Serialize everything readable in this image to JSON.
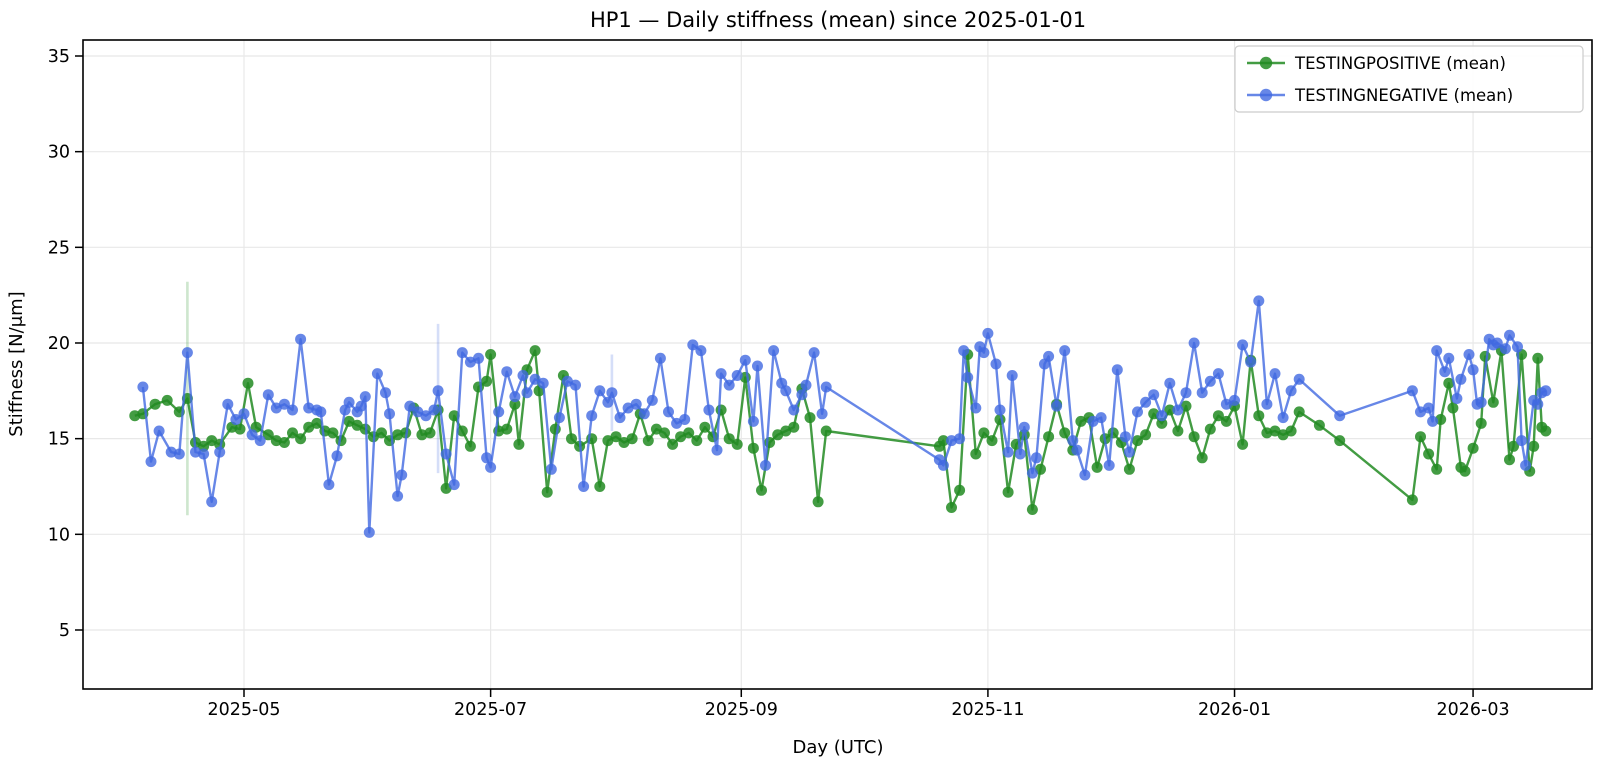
{
  "chart_data": {
    "type": "line",
    "title": "HP1 — Daily stiffness (mean) since 2025-01-01",
    "xlabel": "Day (UTC)",
    "ylabel": "Stiffness [N/μm]",
    "grid": true,
    "legend": {
      "position": "upper right"
    },
    "x_axis": {
      "unit": "day offset from start_date",
      "start_date": "2025-04-04",
      "end_date": "2026-03-19",
      "ticks": [
        {
          "day": 27,
          "label": "2025-05"
        },
        {
          "day": 88,
          "label": "2025-07"
        },
        {
          "day": 150,
          "label": "2025-09"
        },
        {
          "day": 211,
          "label": "2025-11"
        },
        {
          "day": 272,
          "label": "2026-01"
        },
        {
          "day": 331,
          "label": "2026-03"
        }
      ]
    },
    "y_axis": {
      "ticks": [
        5,
        10,
        15,
        20,
        25,
        30,
        35
      ],
      "lim": [
        1.9,
        35.9
      ]
    },
    "series": [
      {
        "name": "TESTINGPOSITIVE (mean)",
        "color_hex": "#228B22",
        "line_rgba": "rgba(34,139,34,0.85)",
        "err_rgba": "rgba(34,139,34,0.22)",
        "days": [
          0,
          2,
          5,
          8,
          11,
          13,
          15,
          17,
          19,
          21,
          24,
          26,
          28,
          30,
          33,
          35,
          37,
          39,
          41,
          43,
          45,
          47,
          49,
          51,
          53,
          55,
          57,
          59,
          61,
          63,
          65,
          67,
          69,
          71,
          73,
          75,
          77,
          79,
          81,
          83,
          85,
          87,
          88,
          90,
          92,
          94,
          95,
          97,
          99,
          100,
          102,
          104,
          106,
          108,
          110,
          113,
          115,
          117,
          119,
          121,
          123,
          125,
          127,
          129,
          131,
          133,
          135,
          137,
          139,
          141,
          143,
          145,
          147,
          149,
          151,
          153,
          155,
          157,
          159,
          161,
          163,
          165,
          167,
          169,
          171,
          199,
          200,
          202,
          204,
          206,
          208,
          210,
          212,
          214,
          216,
          218,
          220,
          222,
          224,
          226,
          228,
          230,
          232,
          234,
          236,
          238,
          240,
          242,
          244,
          246,
          248,
          250,
          252,
          254,
          256,
          258,
          260,
          262,
          264,
          266,
          268,
          270,
          272,
          274,
          276,
          278,
          280,
          282,
          284,
          286,
          288,
          293,
          298,
          316,
          318,
          320,
          322,
          323,
          325,
          326,
          328,
          329,
          331,
          333,
          334,
          336,
          338,
          340,
          341,
          343,
          345,
          346,
          347,
          348,
          349
        ],
        "values": [
          16.2,
          16.3,
          16.8,
          17.0,
          16.4,
          17.1,
          14.8,
          14.6,
          14.9,
          14.7,
          15.6,
          15.5,
          17.9,
          15.6,
          15.2,
          14.9,
          14.8,
          15.3,
          15.0,
          15.6,
          15.8,
          15.4,
          15.3,
          14.9,
          15.9,
          15.7,
          15.5,
          15.1,
          15.3,
          14.9,
          15.2,
          15.3,
          16.6,
          15.2,
          15.3,
          16.5,
          12.4,
          16.2,
          15.4,
          14.6,
          17.7,
          18.0,
          19.4,
          15.4,
          15.5,
          16.8,
          14.7,
          18.6,
          19.6,
          17.5,
          12.2,
          15.5,
          18.3,
          15.0,
          14.6,
          15.0,
          12.5,
          14.9,
          15.1,
          14.8,
          15.0,
          16.3,
          14.9,
          15.5,
          15.3,
          14.7,
          15.1,
          15.3,
          14.9,
          15.6,
          15.1,
          16.5,
          15.0,
          14.7,
          18.2,
          14.5,
          12.3,
          14.8,
          15.2,
          15.4,
          15.6,
          17.6,
          16.1,
          11.7,
          15.4,
          14.6,
          14.9,
          11.4,
          12.3,
          19.4,
          14.2,
          15.3,
          14.9,
          16.0,
          12.2,
          14.7,
          15.2,
          11.3,
          13.4,
          15.1,
          16.8,
          15.3,
          14.4,
          15.9,
          16.1,
          13.5,
          15.0,
          15.3,
          14.8,
          13.4,
          14.9,
          15.2,
          16.3,
          15.8,
          16.5,
          15.4,
          16.7,
          15.1,
          14.0,
          15.5,
          16.2,
          15.9,
          16.7,
          14.7,
          19.1,
          16.2,
          15.3,
          15.4,
          15.2,
          15.4,
          16.4,
          15.7,
          14.9,
          11.8,
          15.1,
          14.2,
          13.4,
          16.0,
          17.9,
          16.6,
          13.5,
          13.3,
          14.5,
          15.8,
          19.3,
          16.9,
          19.6,
          13.9,
          14.6,
          19.4,
          13.3,
          14.6,
          19.2,
          15.6,
          15.4
        ]
      },
      {
        "name": "TESTINGNEGATIVE (mean)",
        "color_hex": "#4169E1",
        "line_rgba": "rgba(65,105,225,0.8)",
        "err_rgba": "rgba(65,105,225,0.22)",
        "days": [
          2,
          4,
          6,
          9,
          11,
          13,
          15,
          17,
          19,
          21,
          23,
          25,
          27,
          29,
          31,
          33,
          35,
          37,
          39,
          41,
          43,
          45,
          46,
          48,
          50,
          52,
          53,
          55,
          56,
          57,
          58,
          60,
          62,
          63,
          65,
          66,
          68,
          70,
          72,
          74,
          75,
          77,
          79,
          81,
          83,
          85,
          87,
          88,
          90,
          92,
          94,
          96,
          97,
          99,
          101,
          103,
          105,
          107,
          109,
          111,
          113,
          115,
          117,
          118,
          120,
          122,
          124,
          126,
          128,
          130,
          132,
          134,
          136,
          138,
          140,
          142,
          144,
          145,
          147,
          149,
          151,
          153,
          154,
          156,
          158,
          160,
          161,
          163,
          165,
          166,
          168,
          170,
          171,
          199,
          200,
          202,
          204,
          205,
          206,
          208,
          209,
          210,
          211,
          213,
          214,
          216,
          217,
          219,
          220,
          222,
          223,
          225,
          226,
          228,
          230,
          232,
          233,
          235,
          237,
          239,
          241,
          243,
          245,
          246,
          248,
          250,
          252,
          254,
          256,
          258,
          260,
          262,
          264,
          266,
          268,
          270,
          272,
          274,
          276,
          278,
          280,
          282,
          284,
          286,
          288,
          298,
          316,
          318,
          320,
          321,
          322,
          324,
          325,
          327,
          328,
          330,
          331,
          332,
          333,
          335,
          336,
          337,
          339,
          340,
          342,
          343,
          344,
          346,
          347,
          348,
          349
        ],
        "values": [
          17.7,
          13.8,
          15.4,
          14.3,
          14.2,
          19.5,
          14.3,
          14.2,
          11.7,
          14.3,
          16.8,
          16.0,
          16.3,
          15.2,
          14.9,
          17.3,
          16.6,
          16.8,
          16.5,
          20.2,
          16.6,
          16.5,
          16.4,
          12.6,
          14.1,
          16.5,
          16.9,
          16.4,
          16.7,
          17.2,
          10.1,
          18.4,
          17.4,
          16.3,
          12.0,
          13.1,
          16.7,
          16.4,
          16.2,
          16.5,
          17.5,
          14.2,
          12.6,
          19.5,
          19.0,
          19.2,
          14.0,
          13.5,
          16.4,
          18.5,
          17.2,
          18.3,
          17.4,
          18.1,
          17.9,
          13.4,
          16.1,
          18.0,
          17.8,
          12.5,
          16.2,
          17.5,
          16.9,
          17.4,
          16.1,
          16.6,
          16.8,
          16.3,
          17.0,
          19.2,
          16.4,
          15.8,
          16.0,
          19.9,
          19.6,
          16.5,
          14.4,
          18.4,
          17.8,
          18.3,
          19.1,
          15.9,
          18.8,
          13.6,
          19.6,
          17.9,
          17.5,
          16.5,
          17.3,
          17.8,
          19.5,
          16.3,
          17.7,
          13.9,
          13.6,
          14.9,
          15.0,
          19.6,
          18.2,
          16.6,
          19.8,
          19.5,
          20.5,
          18.9,
          16.5,
          14.3,
          18.3,
          14.2,
          15.6,
          13.2,
          14.0,
          18.9,
          19.3,
          16.7,
          19.6,
          14.9,
          14.4,
          13.1,
          15.9,
          16.1,
          13.6,
          18.6,
          15.1,
          14.3,
          16.4,
          16.9,
          17.3,
          16.2,
          17.9,
          16.5,
          17.4,
          20.0,
          17.4,
          18.0,
          18.4,
          16.8,
          17.0,
          19.9,
          19.0,
          22.2,
          16.8,
          18.4,
          16.1,
          17.5,
          18.1,
          16.2,
          17.5,
          16.4,
          16.6,
          15.9,
          19.6,
          18.5,
          19.2,
          17.1,
          18.1,
          19.4,
          18.6,
          16.8,
          16.9,
          20.2,
          19.9,
          20.0,
          19.7,
          20.4,
          19.8,
          14.9,
          13.6,
          17.0,
          16.8,
          17.4,
          17.5
        ]
      }
    ],
    "error_bars": [
      {
        "series": 0,
        "day": 13,
        "lo": 11.0,
        "hi": 23.2
      },
      {
        "series": 1,
        "day": 75,
        "lo": 13.2,
        "hi": 21.0
      },
      {
        "series": 1,
        "day": 118,
        "lo": 15.4,
        "hi": 19.4
      }
    ]
  }
}
